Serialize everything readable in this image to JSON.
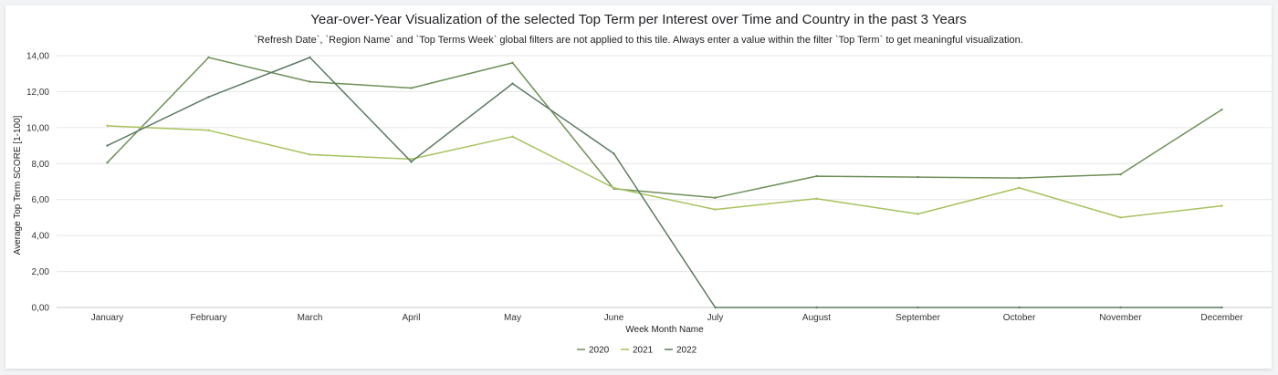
{
  "tile": {
    "title": "Year-over-Year Visualization of the selected Top Term per Interest over Time and Country in the past 3 Years",
    "subtitle": "`Refresh Date`, `Region Name` and `Top Terms Week` global filters are not applied to this tile. Always enter a value within the filter `Top Term` to get meaningful visualization."
  },
  "chart_data": {
    "type": "line",
    "title": "Year-over-Year Visualization of the selected Top Term per Interest over Time and Country in the past 3 Years",
    "xlabel": "Week Month Name",
    "ylabel": "Average Top Term SCORE [1-100]",
    "categories": [
      "January",
      "February",
      "March",
      "April",
      "May",
      "June",
      "July",
      "August",
      "September",
      "October",
      "November",
      "December"
    ],
    "ylim": [
      0,
      14
    ],
    "yticks": [
      0,
      2,
      4,
      6,
      8,
      10,
      12,
      14
    ],
    "ytick_labels": [
      "0,00",
      "2,00",
      "4,00",
      "6,00",
      "8,00",
      "10,00",
      "12,00",
      "14,00"
    ],
    "grid": true,
    "legend_position": "bottom",
    "series": [
      {
        "name": "2020",
        "color": "#6e8f58",
        "values": [
          8.05,
          13.9,
          12.55,
          12.2,
          13.6,
          6.6,
          6.1,
          7.3,
          7.25,
          7.2,
          7.4,
          11.0
        ]
      },
      {
        "name": "2021",
        "color": "#a8c25f",
        "values": [
          10.1,
          9.85,
          8.5,
          8.25,
          9.5,
          6.65,
          5.45,
          6.05,
          5.2,
          6.65,
          5.0,
          5.65
        ]
      },
      {
        "name": "2022",
        "color": "#5d7a64",
        "values": [
          9.0,
          11.7,
          13.9,
          8.1,
          12.45,
          8.55,
          0.0,
          0.0,
          0.0,
          0.0,
          0.0,
          0.0
        ]
      }
    ]
  }
}
